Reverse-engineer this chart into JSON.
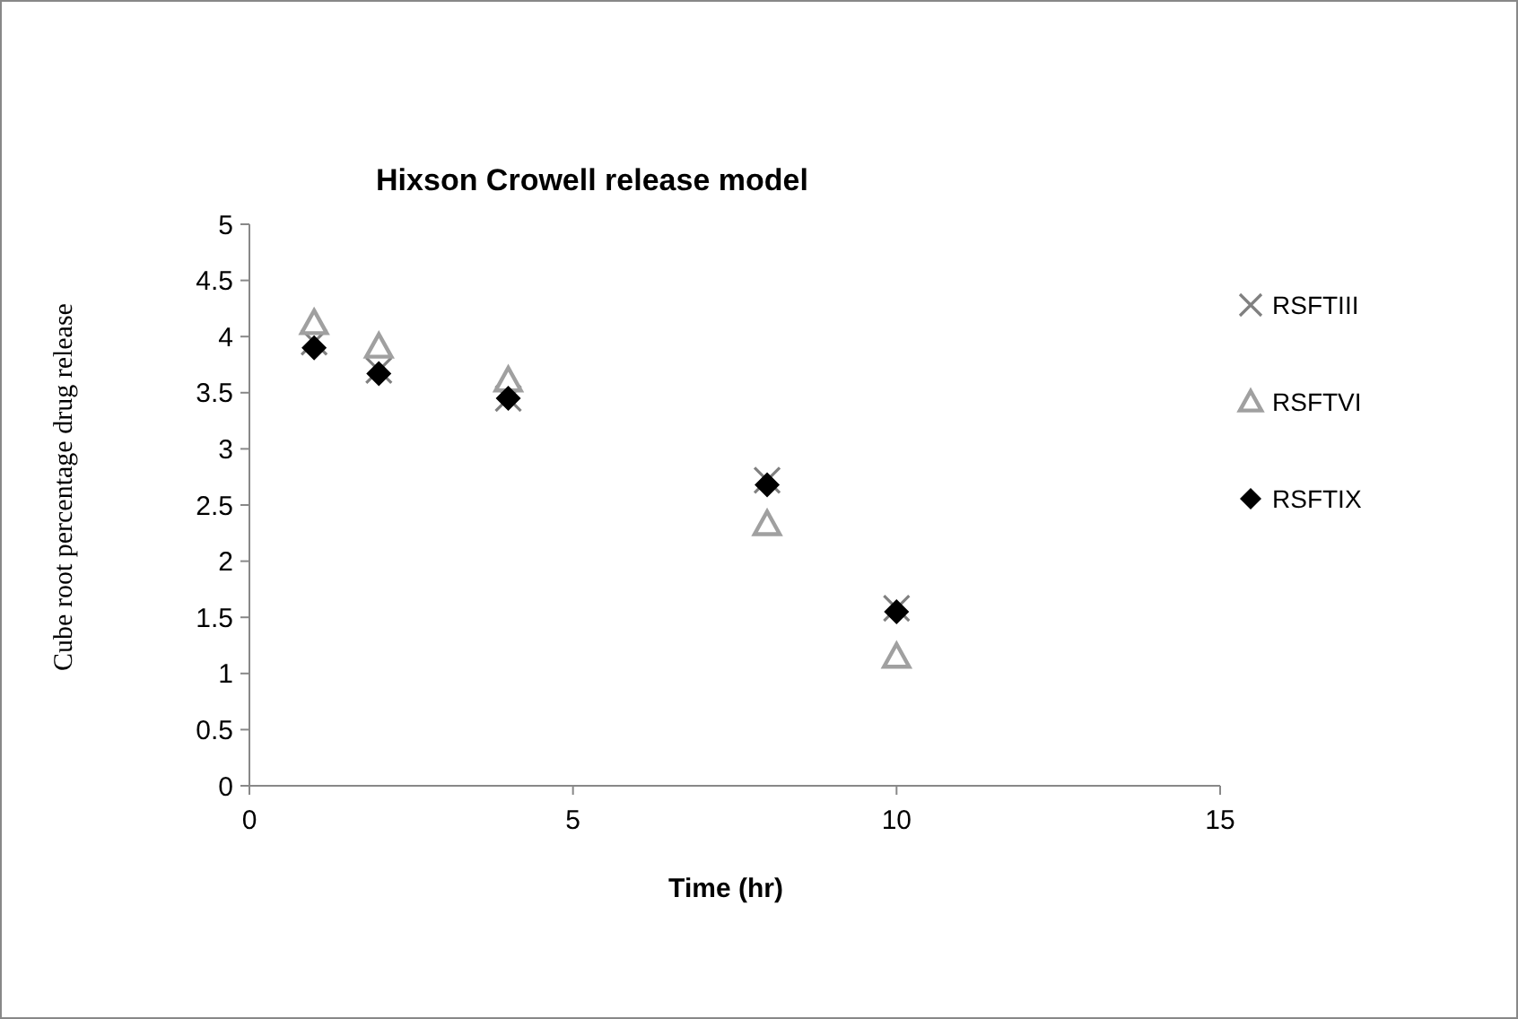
{
  "chart_data": {
    "type": "scatter",
    "title": "Hixson Crowell release model",
    "xlabel": "Time (hr)",
    "ylabel": "Cube root  percentage drug release",
    "x": [
      1,
      2,
      4,
      8,
      10
    ],
    "xlim": [
      0,
      15
    ],
    "xticks": [
      0,
      5,
      10,
      15
    ],
    "ylim": [
      0,
      5
    ],
    "yticks": [
      0,
      0.5,
      1,
      1.5,
      2,
      2.5,
      3,
      3.5,
      4,
      4.5,
      5
    ],
    "grid": false,
    "legend": "right",
    "series": [
      {
        "name": "RSFTIII",
        "color": "#808080",
        "marker": "cross",
        "values": [
          3.95,
          3.7,
          3.45,
          2.72,
          1.58
        ]
      },
      {
        "name": "RSFTVI",
        "color": "#a0a0a0",
        "marker": "triangle",
        "values": [
          4.12,
          3.91,
          3.61,
          2.33,
          1.15
        ]
      },
      {
        "name": "RSFTIX",
        "color": "#000000",
        "marker": "diamond",
        "values": [
          3.9,
          3.67,
          3.45,
          2.68,
          1.55
        ]
      }
    ]
  }
}
